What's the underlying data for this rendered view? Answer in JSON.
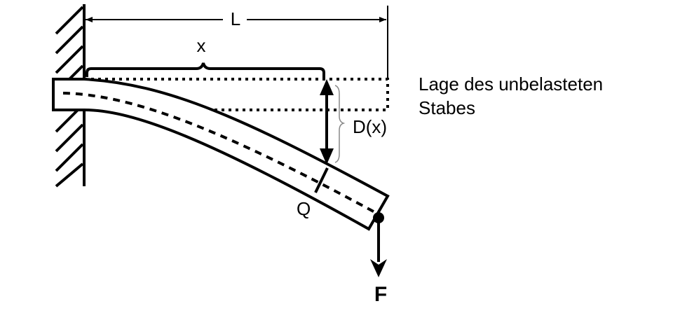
{
  "labels": {
    "length": "L",
    "position": "x",
    "deflection": "D(x)",
    "cross_section": "Q",
    "force": "F",
    "unloaded_line1": "Lage des unbelasteten",
    "unloaded_line2": "Stabes"
  }
}
